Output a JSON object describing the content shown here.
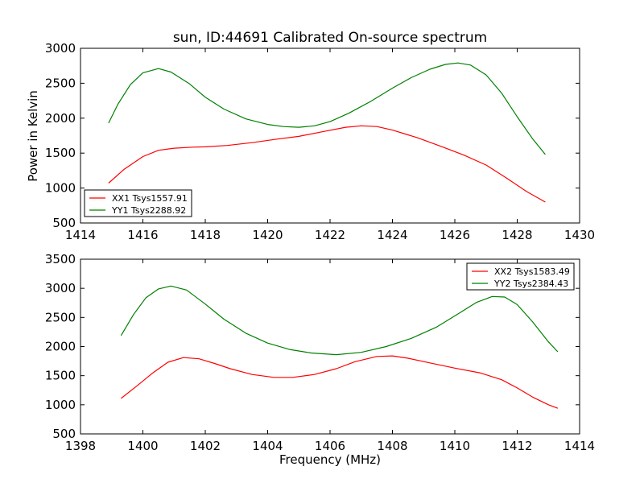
{
  "chart_data": [
    {
      "type": "line",
      "title": "sun, ID:44691 Calibrated On-source spectrum",
      "xlabel": "",
      "ylabel": "Power in Kelvin",
      "xlim": [
        1414,
        1430
      ],
      "ylim": [
        500,
        3000
      ],
      "xticks": [
        1414,
        1416,
        1418,
        1420,
        1422,
        1424,
        1426,
        1428,
        1430
      ],
      "yticks": [
        500,
        1000,
        1500,
        2000,
        2500,
        3000
      ],
      "grid": false,
      "legend_position": "lower-left",
      "series": [
        {
          "name": "XX1 Tsys1557.91",
          "color": "#ff0000",
          "x": [
            1414.9,
            1415.4,
            1416.0,
            1416.5,
            1417.0,
            1417.6,
            1418.0,
            1418.7,
            1419.5,
            1420.3,
            1421.0,
            1421.8,
            1422.5,
            1423.0,
            1423.5,
            1424.0,
            1424.8,
            1425.6,
            1426.3,
            1427.0,
            1427.6,
            1428.3,
            1428.9
          ],
          "y": [
            1070,
            1270,
            1450,
            1540,
            1570,
            1585,
            1590,
            1610,
            1650,
            1700,
            1740,
            1810,
            1870,
            1890,
            1880,
            1830,
            1720,
            1590,
            1470,
            1330,
            1160,
            950,
            800
          ]
        },
        {
          "name": "YY1 Tsys2288.92",
          "color": "#008000",
          "x": [
            1414.9,
            1415.2,
            1415.6,
            1416.0,
            1416.5,
            1416.9,
            1417.5,
            1418.0,
            1418.6,
            1419.3,
            1420.0,
            1420.5,
            1421.0,
            1421.5,
            1422.0,
            1422.6,
            1423.3,
            1424.0,
            1424.6,
            1425.2,
            1425.7,
            1426.1,
            1426.5,
            1427.0,
            1427.5,
            1428.0,
            1428.5,
            1428.9
          ],
          "y": [
            1930,
            2200,
            2480,
            2650,
            2710,
            2660,
            2490,
            2300,
            2130,
            1990,
            1910,
            1880,
            1870,
            1890,
            1950,
            2070,
            2240,
            2430,
            2580,
            2700,
            2770,
            2790,
            2760,
            2620,
            2360,
            2020,
            1700,
            1480
          ]
        }
      ]
    },
    {
      "type": "line",
      "title": "",
      "xlabel": "Frequency (MHz)",
      "ylabel": "",
      "xlim": [
        1398,
        1414
      ],
      "ylim": [
        500,
        3500
      ],
      "xticks": [
        1398,
        1400,
        1402,
        1404,
        1406,
        1408,
        1410,
        1412,
        1414
      ],
      "yticks": [
        500,
        1000,
        1500,
        2000,
        2500,
        3000,
        3500
      ],
      "grid": false,
      "legend_position": "upper-right",
      "series": [
        {
          "name": "XX2 Tsys1583.49",
          "color": "#ff0000",
          "x": [
            1399.3,
            1399.8,
            1400.3,
            1400.8,
            1401.3,
            1401.8,
            1402.3,
            1402.8,
            1403.5,
            1404.2,
            1404.8,
            1405.5,
            1406.2,
            1406.8,
            1407.5,
            1408.0,
            1408.5,
            1409.2,
            1410.0,
            1410.8,
            1411.5,
            1412.0,
            1412.5,
            1413.0,
            1413.3
          ],
          "y": [
            1110,
            1320,
            1540,
            1730,
            1810,
            1790,
            1710,
            1620,
            1520,
            1470,
            1470,
            1520,
            1620,
            1740,
            1830,
            1840,
            1800,
            1720,
            1630,
            1550,
            1430,
            1290,
            1130,
            1000,
            940
          ]
        },
        {
          "name": "YY2 Tsys2384.43",
          "color": "#008000",
          "x": [
            1399.3,
            1399.7,
            1400.1,
            1400.5,
            1400.9,
            1401.4,
            1402.0,
            1402.6,
            1403.3,
            1404.0,
            1404.7,
            1405.4,
            1406.2,
            1407.0,
            1407.8,
            1408.6,
            1409.4,
            1410.1,
            1410.7,
            1411.2,
            1411.6,
            1412.0,
            1412.5,
            1413.0,
            1413.3
          ],
          "y": [
            2190,
            2550,
            2840,
            2990,
            3040,
            2970,
            2730,
            2470,
            2230,
            2060,
            1950,
            1890,
            1860,
            1900,
            2000,
            2140,
            2330,
            2560,
            2760,
            2860,
            2850,
            2720,
            2420,
            2080,
            1910
          ]
        }
      ]
    }
  ]
}
